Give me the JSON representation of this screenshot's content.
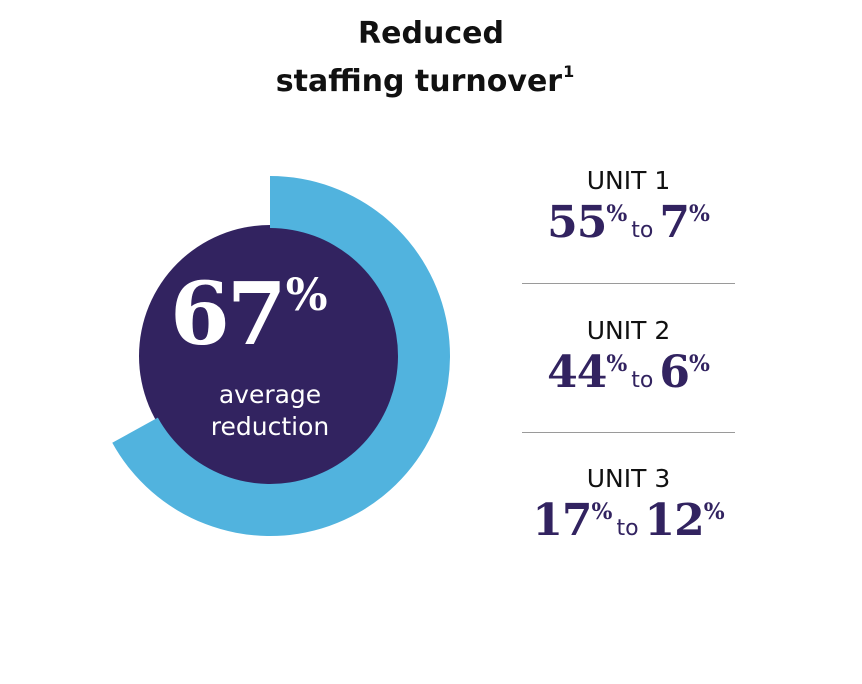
{
  "title": {
    "line1": "Reduced",
    "line2": "staffing turnover",
    "footnote": "1"
  },
  "colors": {
    "navy": "#322360",
    "sky": "#51b3de",
    "text": "#111111",
    "divider": "#9a9a9a"
  },
  "chart_data": [
    {
      "type": "pie",
      "style": "donut",
      "value": 67,
      "max": 100,
      "label_number": "67",
      "label_unit": "%",
      "caption_line1": "average",
      "caption_line2": "reduction"
    },
    {
      "type": "table",
      "rows": [
        {
          "unit": "UNIT 1",
          "from": "55",
          "to": "7",
          "unit_sym": "%",
          "connector": "to"
        },
        {
          "unit": "UNIT 2",
          "from": "44",
          "to": "6",
          "unit_sym": "%",
          "connector": "to"
        },
        {
          "unit": "UNIT 3",
          "from": "17",
          "to": "12",
          "unit_sym": "%",
          "connector": "to"
        }
      ]
    }
  ]
}
